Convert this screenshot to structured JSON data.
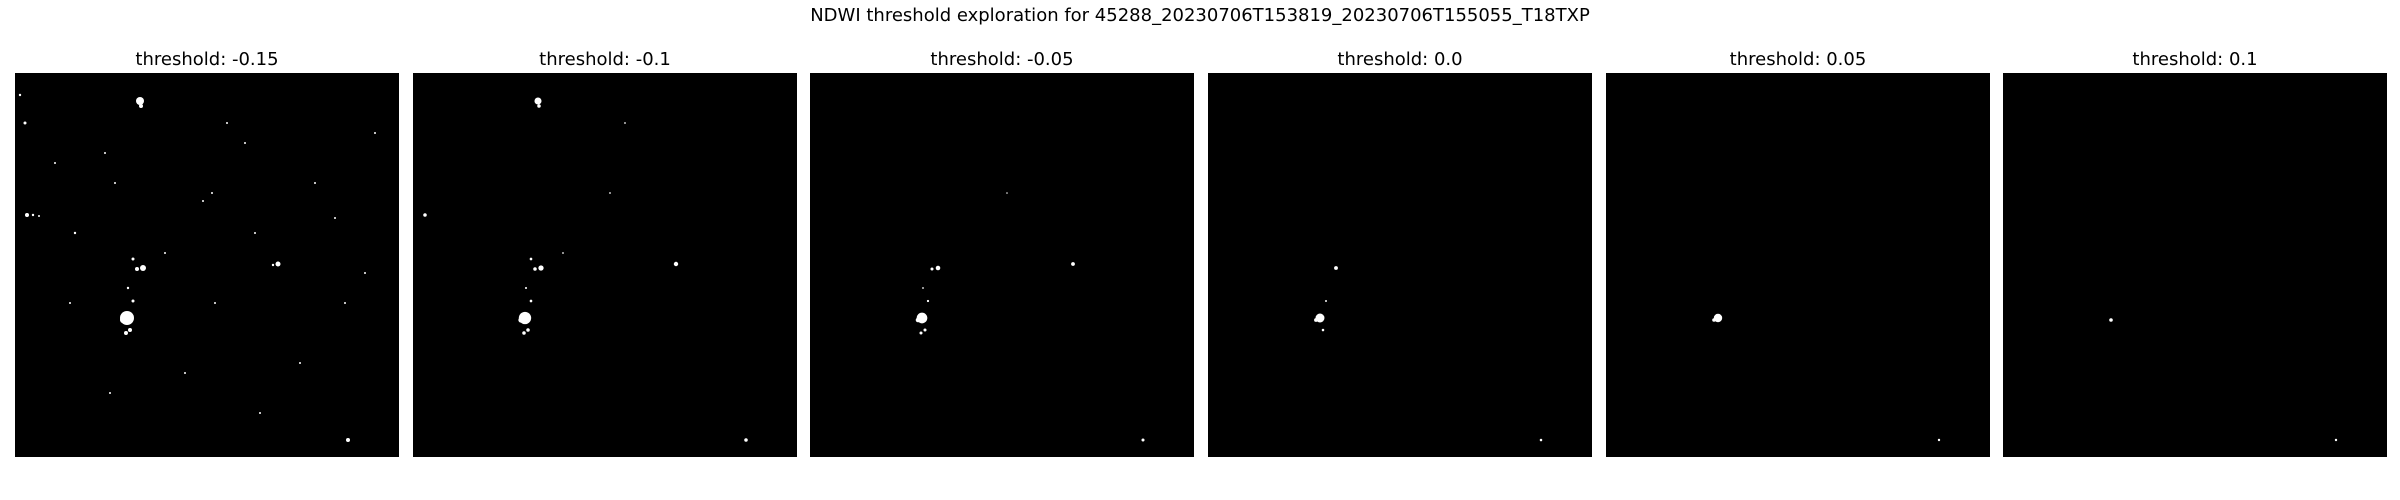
{
  "figure": {
    "suptitle": "NDWI threshold exploration for 45288_20230706T153819_20230706T155055_T18TXP",
    "background_color": "#ffffff",
    "mask_background_color": "#000000",
    "water_pixel_color": "#ffffff"
  },
  "panels": [
    {
      "title": "threshold: -0.15",
      "threshold": -0.15
    },
    {
      "title": "threshold: -0.1",
      "threshold": -0.1
    },
    {
      "title": "threshold: -0.05",
      "threshold": -0.05
    },
    {
      "title": "threshold: 0.0",
      "threshold": 0.0
    },
    {
      "title": "threshold: 0.05",
      "threshold": 0.05
    },
    {
      "title": "threshold: 0.1",
      "threshold": 0.1
    }
  ]
}
